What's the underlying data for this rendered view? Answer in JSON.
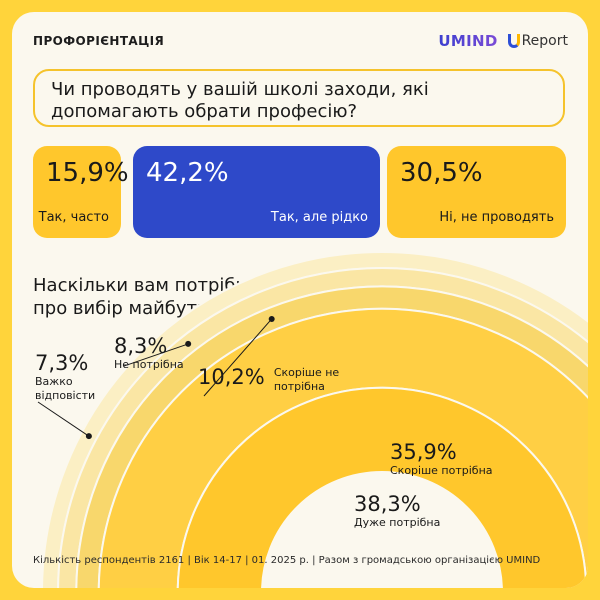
{
  "header": {
    "topic": "ПРОФОРІЄНТАЦІЯ",
    "logo_umind": "UMIND",
    "logo_ureport": "Report"
  },
  "question1": {
    "text": "Чи проводять у вашій школі заходи, які допомагають обрати професію?",
    "options": [
      {
        "value": "15,9%",
        "label": "Так, часто",
        "color": "#FFC72C"
      },
      {
        "value": "42,2%",
        "label": "Так, але рідко",
        "color": "#2E49C9"
      },
      {
        "value": "30,5%",
        "label": "Ні, не проводять",
        "color": "#FFC72C"
      }
    ]
  },
  "question2": {
    "line1": "Наскільки вам потрібна інформація",
    "line2": "про вибір майбутньої професії?"
  },
  "chart_data": {
    "type": "bar",
    "title": "Наскільки вам потрібна інформація про вибір майбутньої професії?",
    "categories": [
      "Важко відповісти",
      "Не потрібна",
      "Скоріше не потрібна",
      "Скоріше потрібна",
      "Дуже потрібна"
    ],
    "values": [
      7.3,
      8.3,
      10.2,
      35.9,
      38.3
    ],
    "value_labels": [
      "7,3%",
      "8,3%",
      "10,2%",
      "35,9%",
      "38,3%"
    ],
    "label_lines": [
      [
        "Важко",
        "відповісти"
      ],
      [
        "Не потрібна"
      ],
      [
        "Скоріше не",
        "потрібна"
      ],
      [
        "Скоріше потрібна"
      ],
      [
        "Дуже потрібна"
      ]
    ],
    "colors": [
      "#FBEFC4",
      "#FAE6A4",
      "#F8D76C",
      "#FFCF44",
      "#FFC72C"
    ]
  },
  "footer": {
    "text": "Кількість респондентів 2161 | Вік 14-17 | 01. 2025 р. | Разом з громадською організацією UMIND"
  }
}
